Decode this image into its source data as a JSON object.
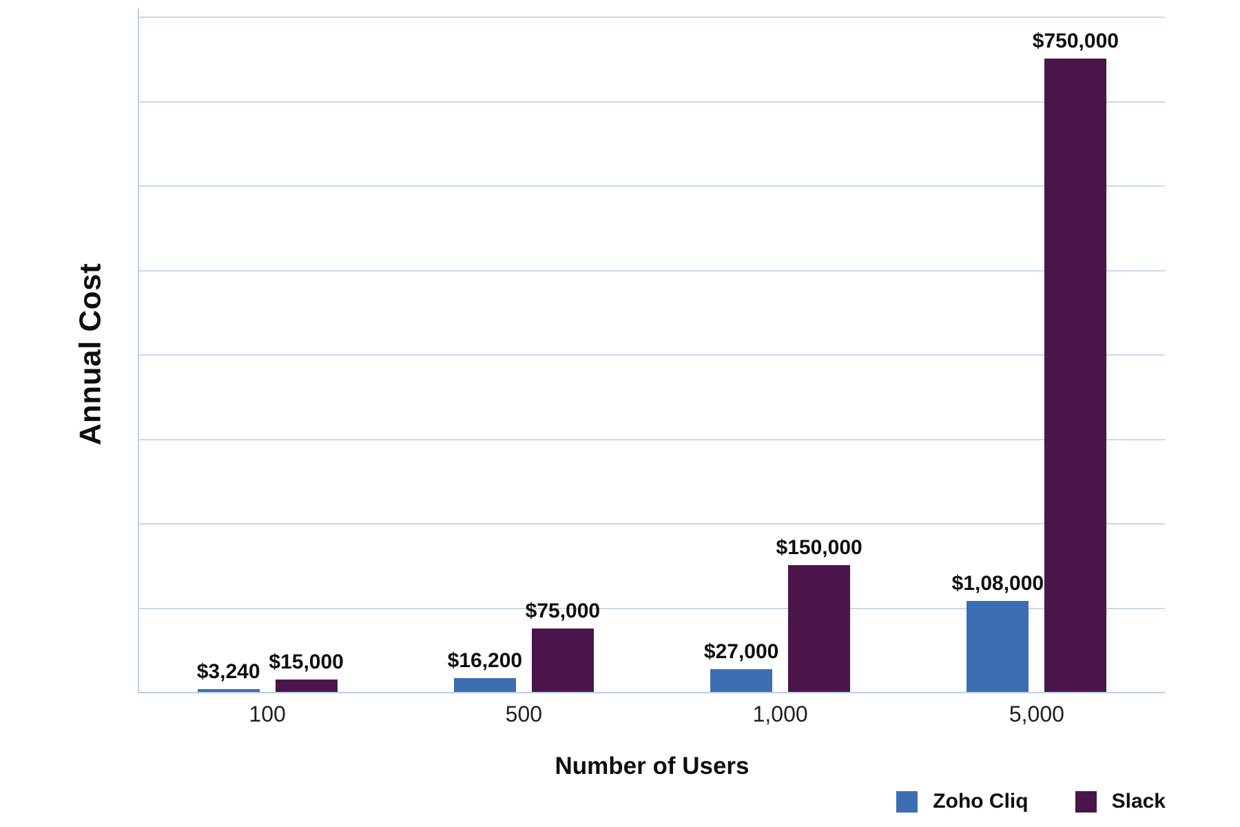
{
  "chart_data": {
    "type": "bar",
    "title": "",
    "xlabel": "Number of Users",
    "ylabel": "Annual Cost",
    "categories": [
      "100",
      "500",
      "1,000",
      "5,000"
    ],
    "series": [
      {
        "name": "Zoho Cliq",
        "color": "#3C6EB1",
        "values": [
          3240,
          16200,
          27000,
          108000
        ],
        "value_labels": [
          "$3,240",
          "$16,200",
          "$27,000",
          "$1,08,000"
        ]
      },
      {
        "name": "Slack",
        "color": "#4A154B",
        "values": [
          15000,
          75000,
          150000,
          750000
        ],
        "value_labels": [
          "$15,000",
          "$75,000",
          "$150,000",
          "$750,000"
        ]
      }
    ],
    "ylim": [
      0,
      800000
    ],
    "y_gridline_step": 100000,
    "gridline_count": 8,
    "grid_on": true,
    "y_tick_labels_shown": false,
    "legend_position": "bottom-right",
    "grid_color": "#C9D8F0",
    "axis_color": "#BCCFEC",
    "text_color": "#0F0F0F"
  }
}
